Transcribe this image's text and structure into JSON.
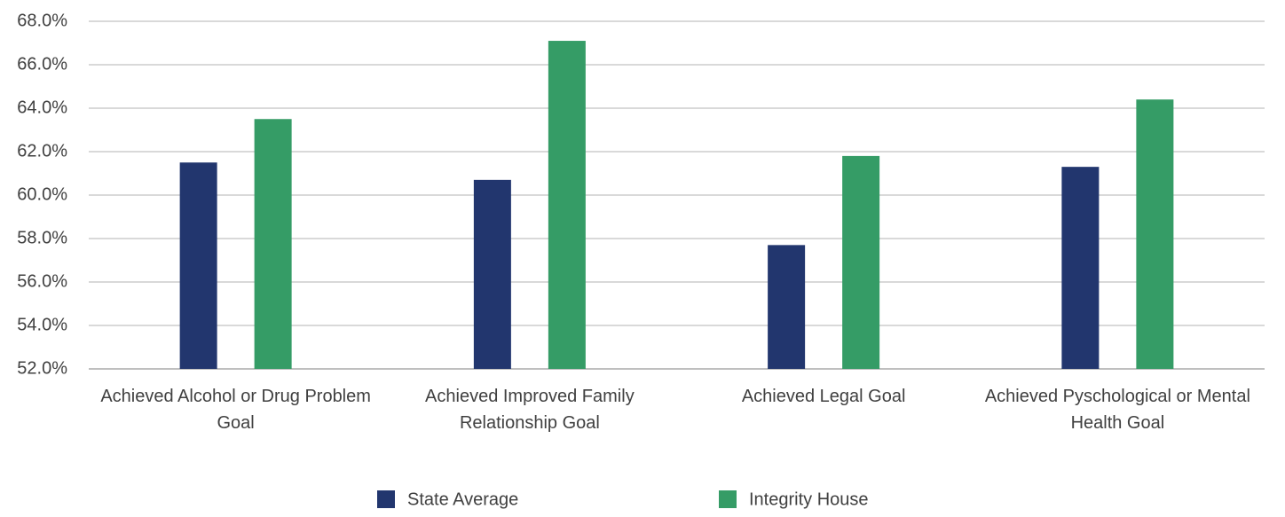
{
  "chart_data": {
    "type": "bar",
    "categories": [
      "Achieved Alcohol or Drug Problem Goal",
      "Achieved Improved Family Relationship Goal",
      "Achieved Legal Goal",
      "Achieved Pyschological or Mental Health Goal"
    ],
    "series": [
      {
        "name": "State Average",
        "color": "#22366e",
        "values": [
          61.5,
          60.7,
          57.7,
          61.3
        ]
      },
      {
        "name": "Integrity House",
        "color": "#359c66",
        "values": [
          63.5,
          67.1,
          61.8,
          64.4
        ]
      }
    ],
    "ylim": [
      52,
      68
    ],
    "yticks": [
      {
        "value": 52,
        "label": "52.0%"
      },
      {
        "value": 54,
        "label": "54.0%"
      },
      {
        "value": 56,
        "label": "56.0%"
      },
      {
        "value": 58,
        "label": "58.0%"
      },
      {
        "value": 60,
        "label": "60.0%"
      },
      {
        "value": 62,
        "label": "62.0%"
      },
      {
        "value": 64,
        "label": "64.0%"
      },
      {
        "value": 66,
        "label": "66.0%"
      },
      {
        "value": 68,
        "label": "68.0%"
      }
    ],
    "grid": true,
    "legend": "bottom"
  }
}
